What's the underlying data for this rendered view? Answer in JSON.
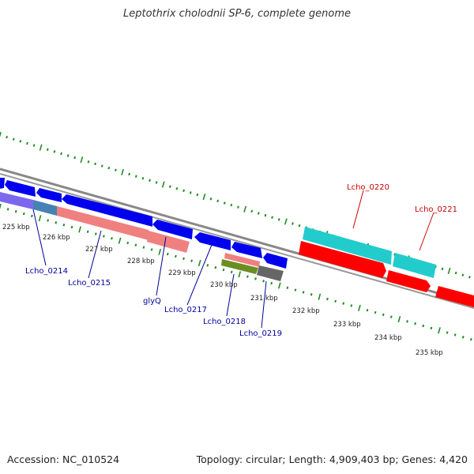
{
  "title": "Leptothrix cholodnii SP-6, complete genome",
  "footer": {
    "accession": "Accession: NC_010524",
    "summary": "Topology: circular; Length: 4,909,403 bp; Genes: 4,420"
  },
  "ticks": [
    "225 kbp",
    "226 kbp",
    "227 kbp",
    "228 kbp",
    "229 kbp",
    "230 kbp",
    "231 kbp",
    "232 kbp",
    "233 kbp",
    "234 kbp",
    "235 kbp"
  ],
  "genes_forward": [
    {
      "name": "Lcho_0220",
      "color": "#cc0000"
    },
    {
      "name": "Lcho_0221",
      "color": "#cc0000"
    }
  ],
  "genes_reverse": [
    {
      "name": "Lcho_0214",
      "color": "#000099"
    },
    {
      "name": "Lcho_0215",
      "color": "#000099"
    },
    {
      "name": "glyQ",
      "color": "#000099"
    },
    {
      "name": "Lcho_0217",
      "color": "#000099"
    },
    {
      "name": "Lcho_0218",
      "color": "#000099"
    },
    {
      "name": "Lcho_0219",
      "color": "#000099"
    }
  ],
  "colors": {
    "backbone": "#888888",
    "gc_skew_dots": "#228b22",
    "cds_reverse": "#0000ee",
    "cds_forward": "#ff0000",
    "match_cyan": "#22cccc",
    "match_pink": "#f08080",
    "match_purple": "#7b68ee",
    "match_steel": "#4682b4",
    "match_olive": "#6b8e23",
    "match_gray": "#666666"
  }
}
